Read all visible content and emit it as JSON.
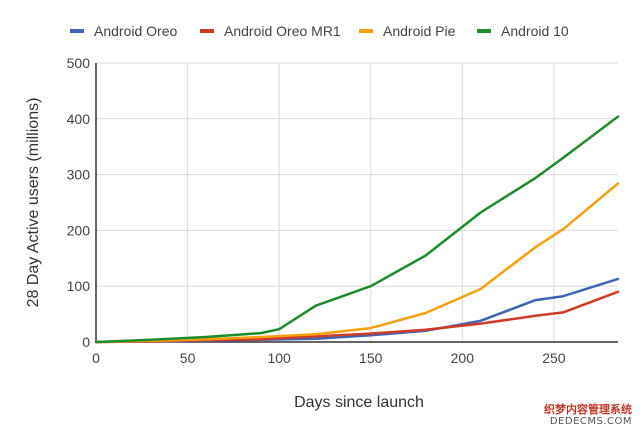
{
  "chart_data": {
    "type": "line",
    "xlabel": "Days since launch",
    "ylabel": "28 Day Active users (millions)",
    "xlim": [
      0,
      285
    ],
    "ylim": [
      0,
      500
    ],
    "xticks": [
      0,
      50,
      100,
      150,
      200,
      250
    ],
    "yticks": [
      0,
      100,
      200,
      300,
      400,
      500
    ],
    "grid": true,
    "legend_position": "top",
    "series": [
      {
        "name": "Android Oreo",
        "color": "#3f65b5",
        "x": [
          0,
          30,
          60,
          90,
          120,
          150,
          180,
          210,
          240,
          255,
          285
        ],
        "y": [
          0,
          1,
          2,
          4,
          6,
          12,
          20,
          38,
          75,
          82,
          113
        ]
      },
      {
        "name": "Android Oreo MR1",
        "color": "#cf3b27",
        "x": [
          0,
          30,
          60,
          90,
          120,
          150,
          180,
          210,
          240,
          255,
          285
        ],
        "y": [
          0,
          1,
          3,
          5,
          10,
          15,
          22,
          33,
          47,
          53,
          90
        ]
      },
      {
        "name": "Android Pie",
        "color": "#f5a00f",
        "x": [
          0,
          30,
          60,
          90,
          120,
          150,
          180,
          210,
          240,
          255,
          285
        ],
        "y": [
          0,
          2,
          5,
          9,
          14,
          25,
          52,
          95,
          170,
          202,
          284
        ]
      },
      {
        "name": "Android 10",
        "color": "#1e8b2c",
        "x": [
          0,
          30,
          60,
          90,
          100,
          120,
          150,
          180,
          210,
          240,
          255,
          285
        ],
        "y": [
          0,
          4,
          9,
          16,
          23,
          65,
          100,
          155,
          232,
          294,
          330,
          404
        ]
      }
    ]
  },
  "watermark": {
    "line1": "织梦内容管理系统",
    "line2": "DEDECMS.COM"
  }
}
